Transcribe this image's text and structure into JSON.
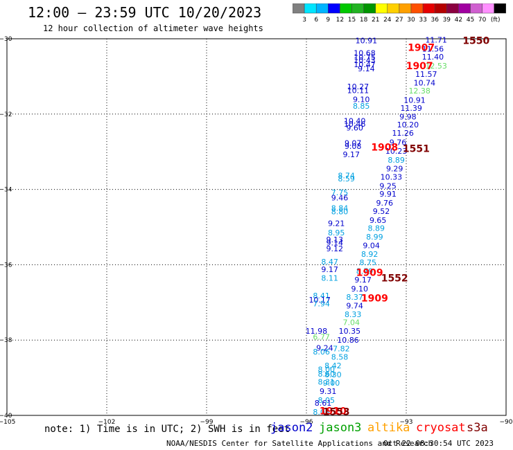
{
  "header": {
    "title": "12:00 – 23:59 UTC 10/20/2023",
    "subtitle": "12 hour collection of altimeter wave heights"
  },
  "colorbar": {
    "labels": [
      "3",
      "6",
      "9",
      "12",
      "15",
      "18",
      "21",
      "24",
      "27",
      "30",
      "33",
      "36",
      "39",
      "42",
      "45",
      "70"
    ],
    "unit": "(ft)",
    "colors": [
      "#808080",
      "#00e5ff",
      "#00b4ff",
      "#0000ff",
      "#00c800",
      "#22b422",
      "#009600",
      "#ffff00",
      "#ffd000",
      "#ffa000",
      "#ff5000",
      "#e60000",
      "#b40000",
      "#8b0040",
      "#a000a0",
      "#d060d0",
      "#ff90ff",
      "#000000"
    ]
  },
  "footer": {
    "note": "note: 1) Time is in UTC; 2) SWH is in feet",
    "satellites": [
      {
        "name": "jason2",
        "color": "#0000cc"
      },
      {
        "name": "jason3",
        "color": "#00a000"
      },
      {
        "name": "altika",
        "color": "#ffa000"
      },
      {
        "name": "cryosat",
        "color": "#ff0000"
      },
      {
        "name": "s3a",
        "color": "#800000"
      }
    ],
    "credit": "NOAA/NESDIS Center for Satellite Applications and Research",
    "timestamp": "Oct 22 08:30:54 UTC 2023"
  },
  "chart_data": {
    "type": "scatter",
    "xlim": [
      -105,
      -90
    ],
    "ylim": [
      -40,
      -30
    ],
    "x_ticks": [
      -105,
      -102,
      -99,
      -96,
      -93,
      -90
    ],
    "y_ticks": [
      -30,
      -32,
      -34,
      -36,
      -38,
      -40
    ],
    "x_tick_labels": [
      "−105",
      "−102",
      "−99",
      "−96",
      "−93",
      "−90"
    ],
    "y_tick_labels": [
      "−30",
      "−32",
      "−34",
      "−36",
      "−38",
      "−40"
    ],
    "grid": true,
    "wave_heights": [
      {
        "x": -92.1,
        "y": -30.03,
        "v": "11.71",
        "color": "#0000cc"
      },
      {
        "x": -92.2,
        "y": -30.27,
        "v": "11.56",
        "color": "#0000cc"
      },
      {
        "x": -92.2,
        "y": -30.48,
        "v": "11.40",
        "color": "#0000cc"
      },
      {
        "x": -92.1,
        "y": -30.72,
        "v": "12.53",
        "color": "#66dd66"
      },
      {
        "x": -92.4,
        "y": -30.94,
        "v": "11.57",
        "color": "#0000cc"
      },
      {
        "x": -92.45,
        "y": -31.17,
        "v": "10.74",
        "color": "#0000cc"
      },
      {
        "x": -92.6,
        "y": -31.38,
        "v": "12.38",
        "color": "#66dd66"
      },
      {
        "x": -92.75,
        "y": -31.63,
        "v": "10.91",
        "color": "#0000cc"
      },
      {
        "x": -92.85,
        "y": -31.84,
        "v": "11.39",
        "color": "#0000cc"
      },
      {
        "x": -92.95,
        "y": -32.07,
        "v": "9.98",
        "color": "#0000cc"
      },
      {
        "x": -92.95,
        "y": -32.28,
        "v": "10.20",
        "color": "#0000cc"
      },
      {
        "x": -93.1,
        "y": -32.5,
        "v": "11.26",
        "color": "#0000cc"
      },
      {
        "x": -93.25,
        "y": -32.75,
        "v": "9.76",
        "color": "#0000cc"
      },
      {
        "x": -93.3,
        "y": -32.98,
        "v": "10.23",
        "color": "#0000cc"
      },
      {
        "x": -93.3,
        "y": -33.22,
        "v": "8.89",
        "color": "#00a0e0"
      },
      {
        "x": -93.35,
        "y": -33.45,
        "v": "9.29",
        "color": "#0000cc"
      },
      {
        "x": -93.45,
        "y": -33.67,
        "v": "10.33",
        "color": "#0000cc"
      },
      {
        "x": -93.55,
        "y": -33.91,
        "v": "9.25",
        "color": "#0000cc"
      },
      {
        "x": -93.55,
        "y": -34.12,
        "v": "9.91",
        "color": "#0000cc"
      },
      {
        "x": -93.65,
        "y": -34.36,
        "v": "9.76",
        "color": "#0000cc"
      },
      {
        "x": -93.75,
        "y": -34.58,
        "v": "9.52",
        "color": "#0000cc"
      },
      {
        "x": -93.85,
        "y": -34.82,
        "v": "9.65",
        "color": "#0000cc"
      },
      {
        "x": -93.9,
        "y": -35.03,
        "v": "8.89",
        "color": "#00a0e0"
      },
      {
        "x": -93.95,
        "y": -35.26,
        "v": "8.99",
        "color": "#00a0e0"
      },
      {
        "x": -94.05,
        "y": -35.49,
        "v": "9.04",
        "color": "#0000cc"
      },
      {
        "x": -94.1,
        "y": -35.72,
        "v": "8.92",
        "color": "#00a0e0"
      },
      {
        "x": -94.15,
        "y": -35.94,
        "v": "8.75",
        "color": "#00a0e0"
      },
      {
        "x": -94.25,
        "y": -36.17,
        "v": "8.79",
        "color": "#00a0e0"
      },
      {
        "x": -94.3,
        "y": -36.4,
        "v": "9.17",
        "color": "#0000cc"
      },
      {
        "x": -94.4,
        "y": -36.64,
        "v": "9.10",
        "color": "#0000cc"
      },
      {
        "x": -94.55,
        "y": -36.86,
        "v": "8.37",
        "color": "#00a0e0"
      },
      {
        "x": -94.55,
        "y": -37.09,
        "v": "9.74",
        "color": "#0000cc"
      },
      {
        "x": -94.6,
        "y": -37.32,
        "v": "8.33",
        "color": "#00a0e0"
      },
      {
        "x": -94.65,
        "y": -37.53,
        "v": "7.04",
        "color": "#66dd66"
      },
      {
        "x": -94.7,
        "y": -37.76,
        "v": "10.35",
        "color": "#0000cc"
      },
      {
        "x": -94.75,
        "y": -38.0,
        "v": "10.86",
        "color": "#0000cc"
      },
      {
        "x": -94.95,
        "y": -38.23,
        "v": "7.82",
        "color": "#00a0e0"
      },
      {
        "x": -95.0,
        "y": -38.45,
        "v": "8.58",
        "color": "#00a0e0"
      },
      {
        "x": -95.2,
        "y": -38.68,
        "v": "8.42",
        "color": "#00a0e0"
      },
      {
        "x": -95.2,
        "y": -38.92,
        "v": "8.30",
        "color": "#00a0e0"
      },
      {
        "x": -95.25,
        "y": -39.14,
        "v": "9.00",
        "color": "#00a0e0"
      },
      {
        "x": -95.35,
        "y": -39.36,
        "v": "9.31",
        "color": "#0000cc"
      },
      {
        "x": -95.4,
        "y": -39.6,
        "v": "8.05",
        "color": "#00a0e0"
      },
      {
        "x": -94.2,
        "y": -30.05,
        "v": "10.91",
        "color": "#0000cc"
      },
      {
        "x": -94.25,
        "y": -30.38,
        "v": "10.68",
        "color": "#0000cc"
      },
      {
        "x": -94.25,
        "y": -30.49,
        "v": "10.75",
        "color": "#0000cc"
      },
      {
        "x": -94.25,
        "y": -30.57,
        "v": "10.43",
        "color": "#0000cc"
      },
      {
        "x": -94.25,
        "y": -30.68,
        "v": "10.47",
        "color": "#0000cc"
      },
      {
        "x": -94.2,
        "y": -30.79,
        "v": "9.14",
        "color": "#0000cc"
      },
      {
        "x": -94.45,
        "y": -31.27,
        "v": "10.27",
        "color": "#0000cc"
      },
      {
        "x": -94.45,
        "y": -31.37,
        "v": "10.11",
        "color": "#0000cc"
      },
      {
        "x": -94.35,
        "y": -31.61,
        "v": "9.10",
        "color": "#0000cc"
      },
      {
        "x": -94.35,
        "y": -31.78,
        "v": "8.85",
        "color": "#00a0e0"
      },
      {
        "x": -94.55,
        "y": -32.18,
        "v": "10.40",
        "color": "#0000cc"
      },
      {
        "x": -94.55,
        "y": -32.26,
        "v": "10.46",
        "color": "#0000cc"
      },
      {
        "x": -94.55,
        "y": -32.36,
        "v": "9.60",
        "color": "#0000cc"
      },
      {
        "x": -94.6,
        "y": -32.77,
        "v": "9.07",
        "color": "#0000cc"
      },
      {
        "x": -94.6,
        "y": -32.85,
        "v": "9.08",
        "color": "#0000cc"
      },
      {
        "x": -94.65,
        "y": -33.07,
        "v": "9.17",
        "color": "#0000cc"
      },
      {
        "x": -94.8,
        "y": -33.63,
        "v": "8.74",
        "color": "#00a0e0"
      },
      {
        "x": -94.8,
        "y": -33.71,
        "v": "8.59",
        "color": "#00a0e0"
      },
      {
        "x": -95.0,
        "y": -34.08,
        "v": "7.75",
        "color": "#00a0e0"
      },
      {
        "x": -95.0,
        "y": -34.22,
        "v": "9.46",
        "color": "#0000cc"
      },
      {
        "x": -95.0,
        "y": -34.49,
        "v": "8.84",
        "color": "#00a0e0"
      },
      {
        "x": -95.0,
        "y": -34.59,
        "v": "8.80",
        "color": "#00a0e0"
      },
      {
        "x": -95.1,
        "y": -34.9,
        "v": "9.21",
        "color": "#0000cc"
      },
      {
        "x": -95.1,
        "y": -35.15,
        "v": "8.95",
        "color": "#00a0e0"
      },
      {
        "x": -95.15,
        "y": -35.33,
        "v": "9.13",
        "color": "#0000cc"
      },
      {
        "x": -95.15,
        "y": -35.41,
        "v": "9.14",
        "color": "#0000cc"
      },
      {
        "x": -95.15,
        "y": -35.57,
        "v": "9.12",
        "color": "#0000cc"
      },
      {
        "x": -95.3,
        "y": -35.92,
        "v": "8.47",
        "color": "#00a0e0"
      },
      {
        "x": -95.3,
        "y": -36.12,
        "v": "9.17",
        "color": "#0000cc"
      },
      {
        "x": -95.3,
        "y": -36.35,
        "v": "8.11",
        "color": "#00a0e0"
      },
      {
        "x": -95.55,
        "y": -36.82,
        "v": "8.41",
        "color": "#00a0e0"
      },
      {
        "x": -95.6,
        "y": -36.93,
        "v": "10.17",
        "color": "#0000cc"
      },
      {
        "x": -95.55,
        "y": -37.03,
        "v": "7.94",
        "color": "#00a0e0"
      },
      {
        "x": -95.7,
        "y": -37.76,
        "v": "11.98",
        "color": "#0000cc"
      },
      {
        "x": -95.55,
        "y": -37.91,
        "v": "6.77",
        "color": "#66dd66"
      },
      {
        "x": -95.45,
        "y": -38.21,
        "v": "9.24",
        "color": "#0000cc"
      },
      {
        "x": -95.55,
        "y": -38.31,
        "v": "8.06",
        "color": "#00a0e0"
      },
      {
        "x": -95.4,
        "y": -38.78,
        "v": "8.00",
        "color": "#00a0e0"
      },
      {
        "x": -95.4,
        "y": -38.9,
        "v": "8.60",
        "color": "#00a0e0"
      },
      {
        "x": -95.4,
        "y": -39.11,
        "v": "8.31",
        "color": "#00a0e0"
      },
      {
        "x": -95.5,
        "y": -39.67,
        "v": "8.61",
        "color": "#0000cc"
      },
      {
        "x": -95.55,
        "y": -39.91,
        "v": "8.03",
        "color": "#00a0e0"
      }
    ],
    "pass_times": [
      {
        "x": -90.9,
        "y": -30.05,
        "t": "1550",
        "color": "#800000"
      },
      {
        "x": -92.55,
        "y": -30.23,
        "t": "1907",
        "color": "#ff0000"
      },
      {
        "x": -92.6,
        "y": -30.72,
        "t": "1907",
        "color": "#ff0000"
      },
      {
        "x": -93.65,
        "y": -32.88,
        "t": "1908",
        "color": "#ff0000"
      },
      {
        "x": -92.7,
        "y": -32.91,
        "t": "1551",
        "color": "#800000"
      },
      {
        "x": -94.1,
        "y": -36.2,
        "t": "1909",
        "color": "#ff0000"
      },
      {
        "x": -93.35,
        "y": -36.35,
        "t": "1552",
        "color": "#800000"
      },
      {
        "x": -93.95,
        "y": -36.88,
        "t": "1909",
        "color": "#ff0000"
      },
      {
        "x": -95.2,
        "y": -39.88,
        "t": "1910",
        "color": "#ff0000"
      },
      {
        "x": -95.1,
        "y": -39.9,
        "t": "1553",
        "color": "#800000"
      }
    ]
  }
}
